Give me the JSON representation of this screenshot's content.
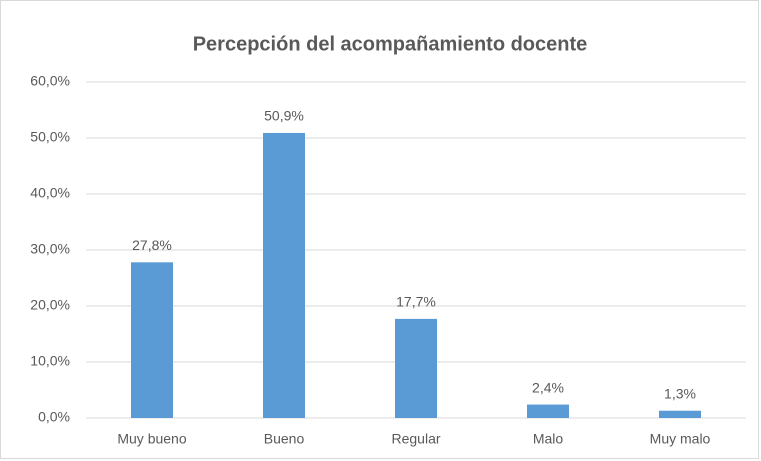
{
  "chart_data": {
    "type": "bar",
    "title": "Percepción del acompañamiento  docente",
    "categories": [
      "Muy bueno",
      "Bueno",
      "Regular",
      "Malo",
      "Muy malo"
    ],
    "values": [
      27.8,
      50.9,
      17.7,
      2.4,
      1.3
    ],
    "value_labels": [
      "27,8%",
      "50,9%",
      "17,7%",
      "2,4%",
      "1,3%"
    ],
    "color": "#5b9bd5",
    "ylim": [
      0,
      60
    ],
    "yticks": [
      {
        "value": 0,
        "label": "0,0%"
      },
      {
        "value": 10,
        "label": "10,0%"
      },
      {
        "value": 20,
        "label": "20,0%"
      },
      {
        "value": 30,
        "label": "30,0%"
      },
      {
        "value": 40,
        "label": "40,0%"
      },
      {
        "value": 50,
        "label": "50,0%"
      },
      {
        "value": 60,
        "label": "60,0%"
      }
    ],
    "grid": true
  }
}
